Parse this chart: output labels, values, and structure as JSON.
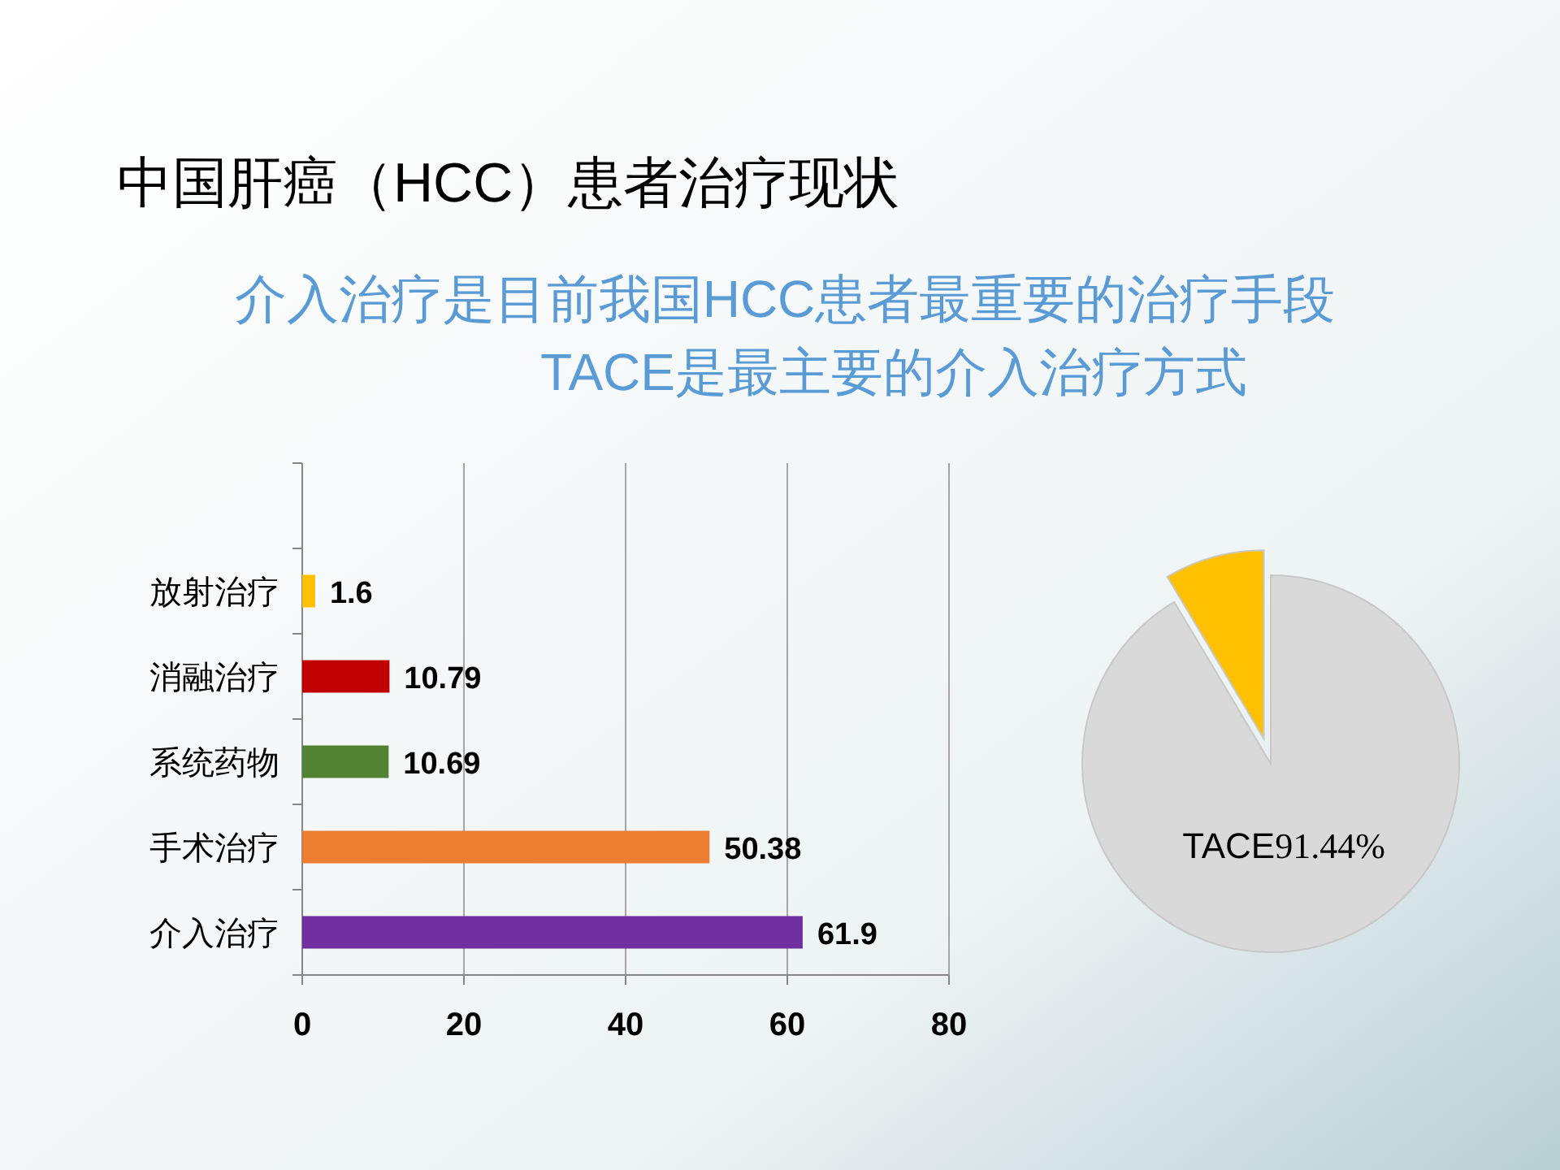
{
  "chart_data": [
    {
      "type": "bar",
      "orientation": "horizontal",
      "title": "中国肝癌（HCC）患者治疗现状",
      "subtitle": "介入治疗是目前我国HCC患者最重要的治疗手段\nTACE是最主要的介入治疗方式",
      "categories": [
        "放射治疗",
        "消融治疗",
        "系统药物",
        "手术治疗",
        "介入治疗"
      ],
      "values": [
        1.6,
        10.79,
        10.69,
        50.38,
        61.9
      ],
      "colors": [
        "#ffc000",
        "#c00000",
        "#548235",
        "#ed7d31",
        "#7030a0"
      ],
      "xlim": [
        0,
        80
      ],
      "xticks": [
        0,
        20,
        40,
        60,
        80
      ],
      "grid": "x",
      "data_labels": true
    },
    {
      "type": "pie",
      "categories": [
        "TACE",
        null
      ],
      "values": [
        91.44,
        8.56
      ],
      "colors": [
        "#d9d9d9",
        "#ffc000"
      ],
      "value_labels": [
        "91.44%",
        null
      ]
    }
  ]
}
